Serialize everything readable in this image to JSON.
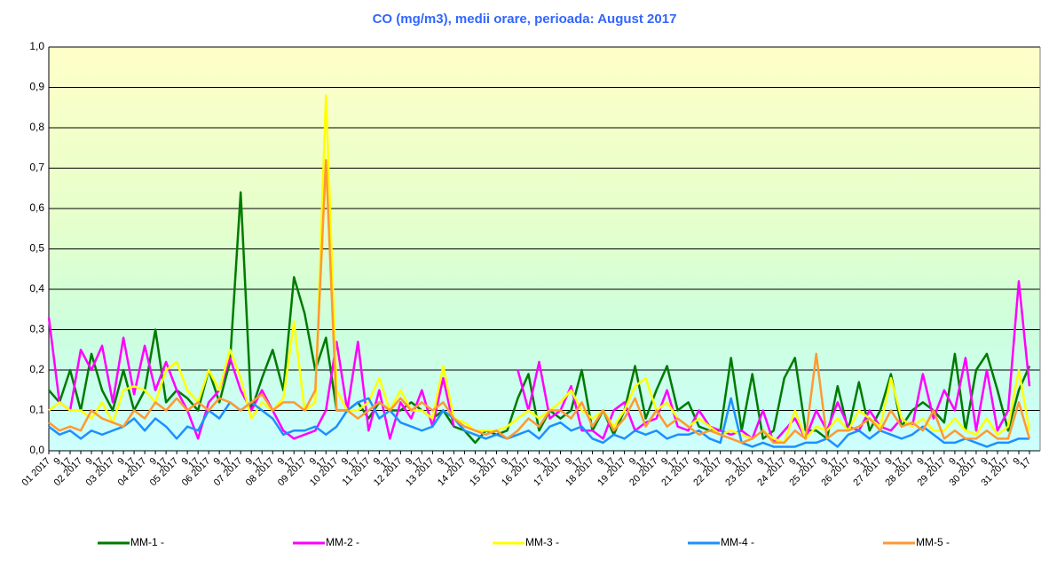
{
  "chart_data": {
    "type": "line",
    "title": "CO (mg/m3), medii orare,  perioada:  August 2017",
    "categories": [
      "01 2017",
      "9",
      "17",
      "02 2017",
      "9",
      "17",
      "03 2017",
      "9",
      "17",
      "04 2017",
      "9",
      "17",
      "05 2017",
      "9",
      "17",
      "06 2017",
      "9",
      "17",
      "07 2017",
      "9",
      "17",
      "08 2017",
      "9",
      "17",
      "09 2017",
      "9",
      "17",
      "10 2017",
      "9",
      "17",
      "11 2017",
      "9",
      "17",
      "12 2017",
      "9",
      "17",
      "13 2017",
      "9",
      "17",
      "14 2017",
      "9",
      "17",
      "15 2017",
      "9",
      "17",
      "16 2017",
      "9",
      "17",
      "17 2017",
      "9",
      "17",
      "18 2017",
      "9",
      "17",
      "19 2017",
      "9",
      "17",
      "20 2017",
      "9",
      "17",
      "21 2017",
      "9",
      "17",
      "22 2017",
      "9",
      "17",
      "23 2017",
      "9",
      "17",
      "24 2017",
      "9",
      "17",
      "25 2017",
      "9",
      "17",
      "26 2017",
      "9",
      "17",
      "27 2017",
      "9",
      "17",
      "28 2017",
      "9",
      "17",
      "29 2017",
      "9",
      "17",
      "30 2017",
      "9",
      "17",
      "31 2017",
      "9",
      "17"
    ],
    "series": [
      {
        "name": "MM-1 -",
        "color": "#007a00",
        "values": [
          0.15,
          0.12,
          0.2,
          0.1,
          0.24,
          0.15,
          0.1,
          0.2,
          0.1,
          0.15,
          0.3,
          0.12,
          0.15,
          0.13,
          0.1,
          0.2,
          0.12,
          0.22,
          0.64,
          0.1,
          0.18,
          0.25,
          0.15,
          0.43,
          0.34,
          0.2,
          0.28,
          0.1,
          0.1,
          0.12,
          0.08,
          0.12,
          0.1,
          0.1,
          0.12,
          0.1,
          0.08,
          0.1,
          0.06,
          0.05,
          0.02,
          0.05,
          0.04,
          0.05,
          0.13,
          0.19,
          0.05,
          0.1,
          0.08,
          0.1,
          0.2,
          0.05,
          0.1,
          0.04,
          0.1,
          0.21,
          0.08,
          0.15,
          0.21,
          0.1,
          0.12,
          0.06,
          0.05,
          0.05,
          0.23,
          0.05,
          0.19,
          0.03,
          0.05,
          0.18,
          0.23,
          0.05,
          0.05,
          0.03,
          0.16,
          0.05,
          0.17,
          0.05,
          0.1,
          0.19,
          0.06,
          0.1,
          0.12,
          0.1,
          0.07,
          0.24,
          0.05,
          0.2,
          0.24,
          0.15,
          0.05,
          0.15,
          0.21
        ]
      },
      {
        "name": "MM-2 -",
        "color": "#ff00ff",
        "values": [
          0.33,
          0.12,
          0.1,
          0.25,
          0.2,
          0.26,
          0.12,
          0.28,
          0.14,
          0.26,
          0.15,
          0.22,
          0.15,
          0.1,
          0.03,
          0.12,
          0.15,
          0.23,
          0.15,
          0.1,
          0.15,
          0.1,
          0.05,
          0.03,
          0.04,
          0.05,
          0.1,
          0.27,
          0.1,
          0.27,
          0.05,
          0.15,
          0.03,
          0.12,
          0.08,
          0.15,
          0.06,
          0.18,
          0.06,
          null,
          null,
          null,
          null,
          null,
          0.2,
          0.1,
          0.22,
          0.08,
          0.1,
          0.16,
          0.05,
          0.05,
          0.03,
          0.1,
          0.12,
          0.05,
          0.07,
          0.08,
          0.15,
          0.06,
          0.05,
          0.1,
          0.06,
          0.05,
          0.04,
          0.05,
          0.03,
          0.1,
          0.02,
          0.05,
          0.08,
          0.03,
          0.1,
          0.05,
          0.12,
          0.06,
          0.05,
          0.1,
          0.06,
          0.05,
          0.08,
          0.06,
          0.19,
          0.08,
          0.15,
          0.1,
          0.23,
          0.05,
          0.2,
          0.05,
          0.1,
          0.42,
          0.16
        ]
      },
      {
        "name": "MM-3 -",
        "color": "#ffff00",
        "values": [
          0.1,
          0.12,
          0.1,
          0.1,
          0.08,
          0.12,
          0.07,
          0.15,
          0.16,
          0.15,
          0.12,
          0.2,
          0.22,
          0.15,
          0.12,
          0.2,
          0.15,
          0.25,
          0.18,
          0.08,
          0.12,
          0.1,
          0.13,
          0.32,
          0.1,
          0.12,
          0.88,
          0.15,
          0.1,
          0.1,
          0.12,
          0.18,
          0.1,
          0.15,
          0.1,
          0.1,
          0.08,
          0.21,
          0.08,
          0.07,
          0.05,
          0.05,
          0.05,
          0.06,
          0.08,
          0.1,
          0.08,
          0.1,
          0.12,
          0.15,
          0.1,
          0.08,
          0.1,
          0.06,
          0.1,
          0.16,
          0.18,
          0.1,
          0.12,
          0.08,
          0.06,
          0.08,
          0.06,
          0.04,
          0.05,
          0.04,
          0.03,
          0.05,
          0.03,
          0.02,
          0.1,
          0.03,
          0.06,
          0.05,
          0.08,
          0.05,
          0.1,
          0.08,
          0.06,
          0.18,
          0.08,
          0.06,
          0.08,
          0.05,
          0.05,
          0.08,
          0.05,
          0.04,
          0.08,
          0.04,
          0.06,
          0.2,
          0.05
        ]
      },
      {
        "name": "MM-4 -",
        "color": "#1e90ff",
        "values": [
          0.06,
          0.04,
          0.05,
          0.03,
          0.05,
          0.04,
          0.05,
          0.06,
          0.08,
          0.05,
          0.08,
          0.06,
          0.03,
          0.06,
          0.05,
          0.1,
          0.08,
          0.12,
          0.1,
          0.12,
          0.1,
          0.08,
          0.04,
          0.05,
          0.05,
          0.06,
          0.04,
          0.06,
          0.1,
          0.12,
          0.13,
          0.08,
          0.1,
          0.07,
          0.06,
          0.05,
          0.06,
          0.1,
          0.08,
          0.05,
          0.04,
          0.03,
          0.04,
          0.03,
          0.04,
          0.05,
          0.03,
          0.06,
          0.07,
          0.05,
          0.06,
          0.03,
          0.02,
          0.04,
          0.03,
          0.05,
          0.04,
          0.05,
          0.03,
          0.04,
          0.04,
          0.05,
          0.03,
          0.02,
          0.13,
          0.02,
          0.01,
          0.02,
          0.01,
          0.01,
          0.01,
          0.02,
          0.02,
          0.03,
          0.01,
          0.04,
          0.05,
          0.03,
          0.05,
          0.04,
          0.03,
          0.04,
          0.06,
          0.04,
          0.02,
          0.02,
          0.03,
          0.02,
          0.01,
          0.02,
          0.02,
          0.03,
          0.03
        ]
      },
      {
        "name": "MM-5 -",
        "color": "#ff9933",
        "values": [
          0.07,
          0.05,
          0.06,
          0.05,
          0.1,
          0.08,
          0.07,
          0.06,
          0.1,
          0.08,
          0.12,
          0.1,
          0.13,
          0.1,
          0.12,
          0.1,
          0.13,
          0.12,
          0.1,
          0.12,
          0.14,
          0.1,
          0.12,
          0.12,
          0.1,
          0.15,
          0.72,
          0.1,
          0.1,
          0.08,
          0.1,
          0.12,
          0.1,
          0.13,
          0.1,
          0.12,
          0.1,
          0.12,
          0.08,
          0.06,
          0.05,
          0.04,
          0.05,
          0.03,
          0.05,
          0.08,
          0.06,
          0.1,
          0.1,
          0.08,
          0.12,
          0.06,
          0.1,
          0.05,
          0.08,
          0.13,
          0.06,
          0.1,
          0.06,
          0.08,
          0.06,
          0.04,
          0.05,
          0.04,
          0.03,
          0.02,
          0.03,
          0.05,
          0.02,
          0.02,
          0.05,
          0.03,
          0.24,
          0.03,
          0.05,
          0.05,
          0.06,
          0.08,
          0.05,
          0.1,
          0.06,
          0.07,
          0.05,
          0.1,
          0.03,
          0.05,
          0.03,
          0.03,
          0.05,
          0.03,
          0.03,
          0.12,
          0.03
        ]
      }
    ],
    "ylim": [
      0,
      1
    ],
    "yticks": [
      {
        "value": 0,
        "label": "0,0"
      },
      {
        "value": 0.1,
        "label": "0,1"
      },
      {
        "value": 0.2,
        "label": "0,2"
      },
      {
        "value": 0.3,
        "label": "0,3"
      },
      {
        "value": 0.4,
        "label": "0,4"
      },
      {
        "value": 0.5,
        "label": "0,5"
      },
      {
        "value": 0.6,
        "label": "0,6"
      },
      {
        "value": 0.7,
        "label": "0,7"
      },
      {
        "value": 0.8,
        "label": "0,8"
      },
      {
        "value": 0.9,
        "label": "0,9"
      },
      {
        "value": 1,
        "label": "1,0"
      }
    ],
    "grid": true
  }
}
